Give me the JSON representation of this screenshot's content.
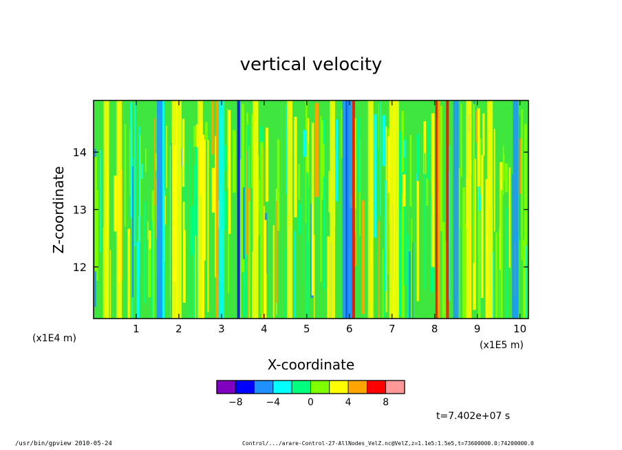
{
  "chart_data": {
    "type": "heatmap",
    "title": "vertical velocity",
    "xlabel": "X-coordinate",
    "ylabel": "Z-coordinate",
    "x_unit_left": "(x1E4 m)",
    "x_unit_right": "(x1E5 m)",
    "xlim": [
      0,
      10.2
    ],
    "ylim": [
      11.1,
      14.9
    ],
    "x_ticks": [
      "1",
      "2",
      "3",
      "4",
      "5",
      "6",
      "7",
      "8",
      "9",
      "10"
    ],
    "y_ticks": [
      "12",
      "13",
      "14"
    ],
    "colorbar": {
      "colors": [
        "#7f00bf",
        "#0000ff",
        "#1e90ff",
        "#00ffff",
        "#00ff7f",
        "#7fff00",
        "#ffff00",
        "#ffa500",
        "#ff0000",
        "#ff9999"
      ],
      "tick_labels": [
        "-8",
        "-4",
        "0",
        "4",
        "8"
      ]
    },
    "time_label": "t=7.402e+07 s",
    "streaks": [
      {
        "x": 1.6,
        "c": 3
      },
      {
        "x": 1.55,
        "c": 2
      },
      {
        "x": 1.9,
        "c": 6
      },
      {
        "x": 2.0,
        "c": 6
      },
      {
        "x": 2.5,
        "c": 6
      },
      {
        "x": 2.9,
        "c": 7
      },
      {
        "x": 3.0,
        "c": 3
      },
      {
        "x": 3.4,
        "c": 1
      },
      {
        "x": 3.8,
        "c": 6
      },
      {
        "x": 5.9,
        "c": 2
      },
      {
        "x": 5.95,
        "c": 1
      },
      {
        "x": 6.0,
        "c": 2
      },
      {
        "x": 6.1,
        "c": 8
      },
      {
        "x": 6.5,
        "c": 6
      },
      {
        "x": 7.0,
        "c": 6
      },
      {
        "x": 7.1,
        "c": 6
      },
      {
        "x": 8.05,
        "c": 8
      },
      {
        "x": 8.1,
        "c": 7
      },
      {
        "x": 8.3,
        "c": 8
      },
      {
        "x": 8.5,
        "c": 2
      },
      {
        "x": 8.8,
        "c": 6
      },
      {
        "x": 9.3,
        "c": 6
      },
      {
        "x": 9.9,
        "c": 2
      },
      {
        "x": 0.3,
        "c": 6
      },
      {
        "x": 0.6,
        "c": 6
      },
      {
        "x": 4.6,
        "c": 6
      },
      {
        "x": 5.6,
        "c": 6
      }
    ]
  },
  "footer": {
    "left": "/usr/bin/gpview  2010-05-24",
    "right": "Control/.../arare-Control-27-AllNodes_VelZ.nc@VelZ,z=1.1e5:1.5e5,t=73600000.0:74200000.0"
  }
}
